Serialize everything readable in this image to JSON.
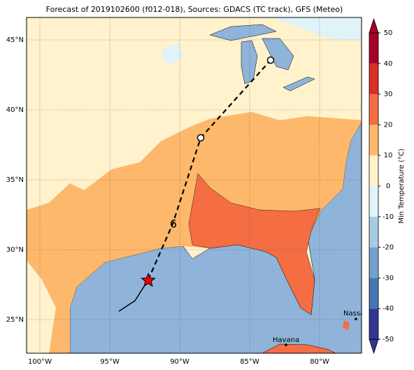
{
  "title": "Forecast of 2019102600 (f012-018), Sources: GDACS (TC track), GFS (Meteo)",
  "map": {
    "xlim": [
      -100.95,
      -77.0
    ],
    "ylim": [
      22.6,
      46.6
    ],
    "xticks": [
      {
        "value": -100,
        "label": "100°W"
      },
      {
        "value": -95,
        "label": "95°W"
      },
      {
        "value": -90,
        "label": "90°W"
      },
      {
        "value": -85,
        "label": "85°W"
      },
      {
        "value": -80,
        "label": "80°W"
      }
    ],
    "yticks": [
      {
        "value": 25,
        "label": "25°N"
      },
      {
        "value": 30,
        "label": "30°N"
      },
      {
        "value": 35,
        "label": "35°N"
      },
      {
        "value": 40,
        "label": "40°N"
      },
      {
        "value": 45,
        "label": "45°N"
      }
    ],
    "cities": [
      "Havana",
      "Nassau"
    ]
  },
  "colorbar": {
    "label": "Min Temperature (°C)",
    "lim": [
      -50,
      50
    ],
    "ticks": [
      -50,
      -40,
      -30,
      -20,
      -10,
      0,
      10,
      20,
      30,
      40,
      50
    ],
    "colors": [
      "#313695",
      "#4575b4",
      "#74a0cc",
      "#a6cbe2",
      "#e0f3f8",
      "#fff2cc",
      "#fdb86b",
      "#f46d43",
      "#d62f27",
      "#a50026"
    ]
  }
}
